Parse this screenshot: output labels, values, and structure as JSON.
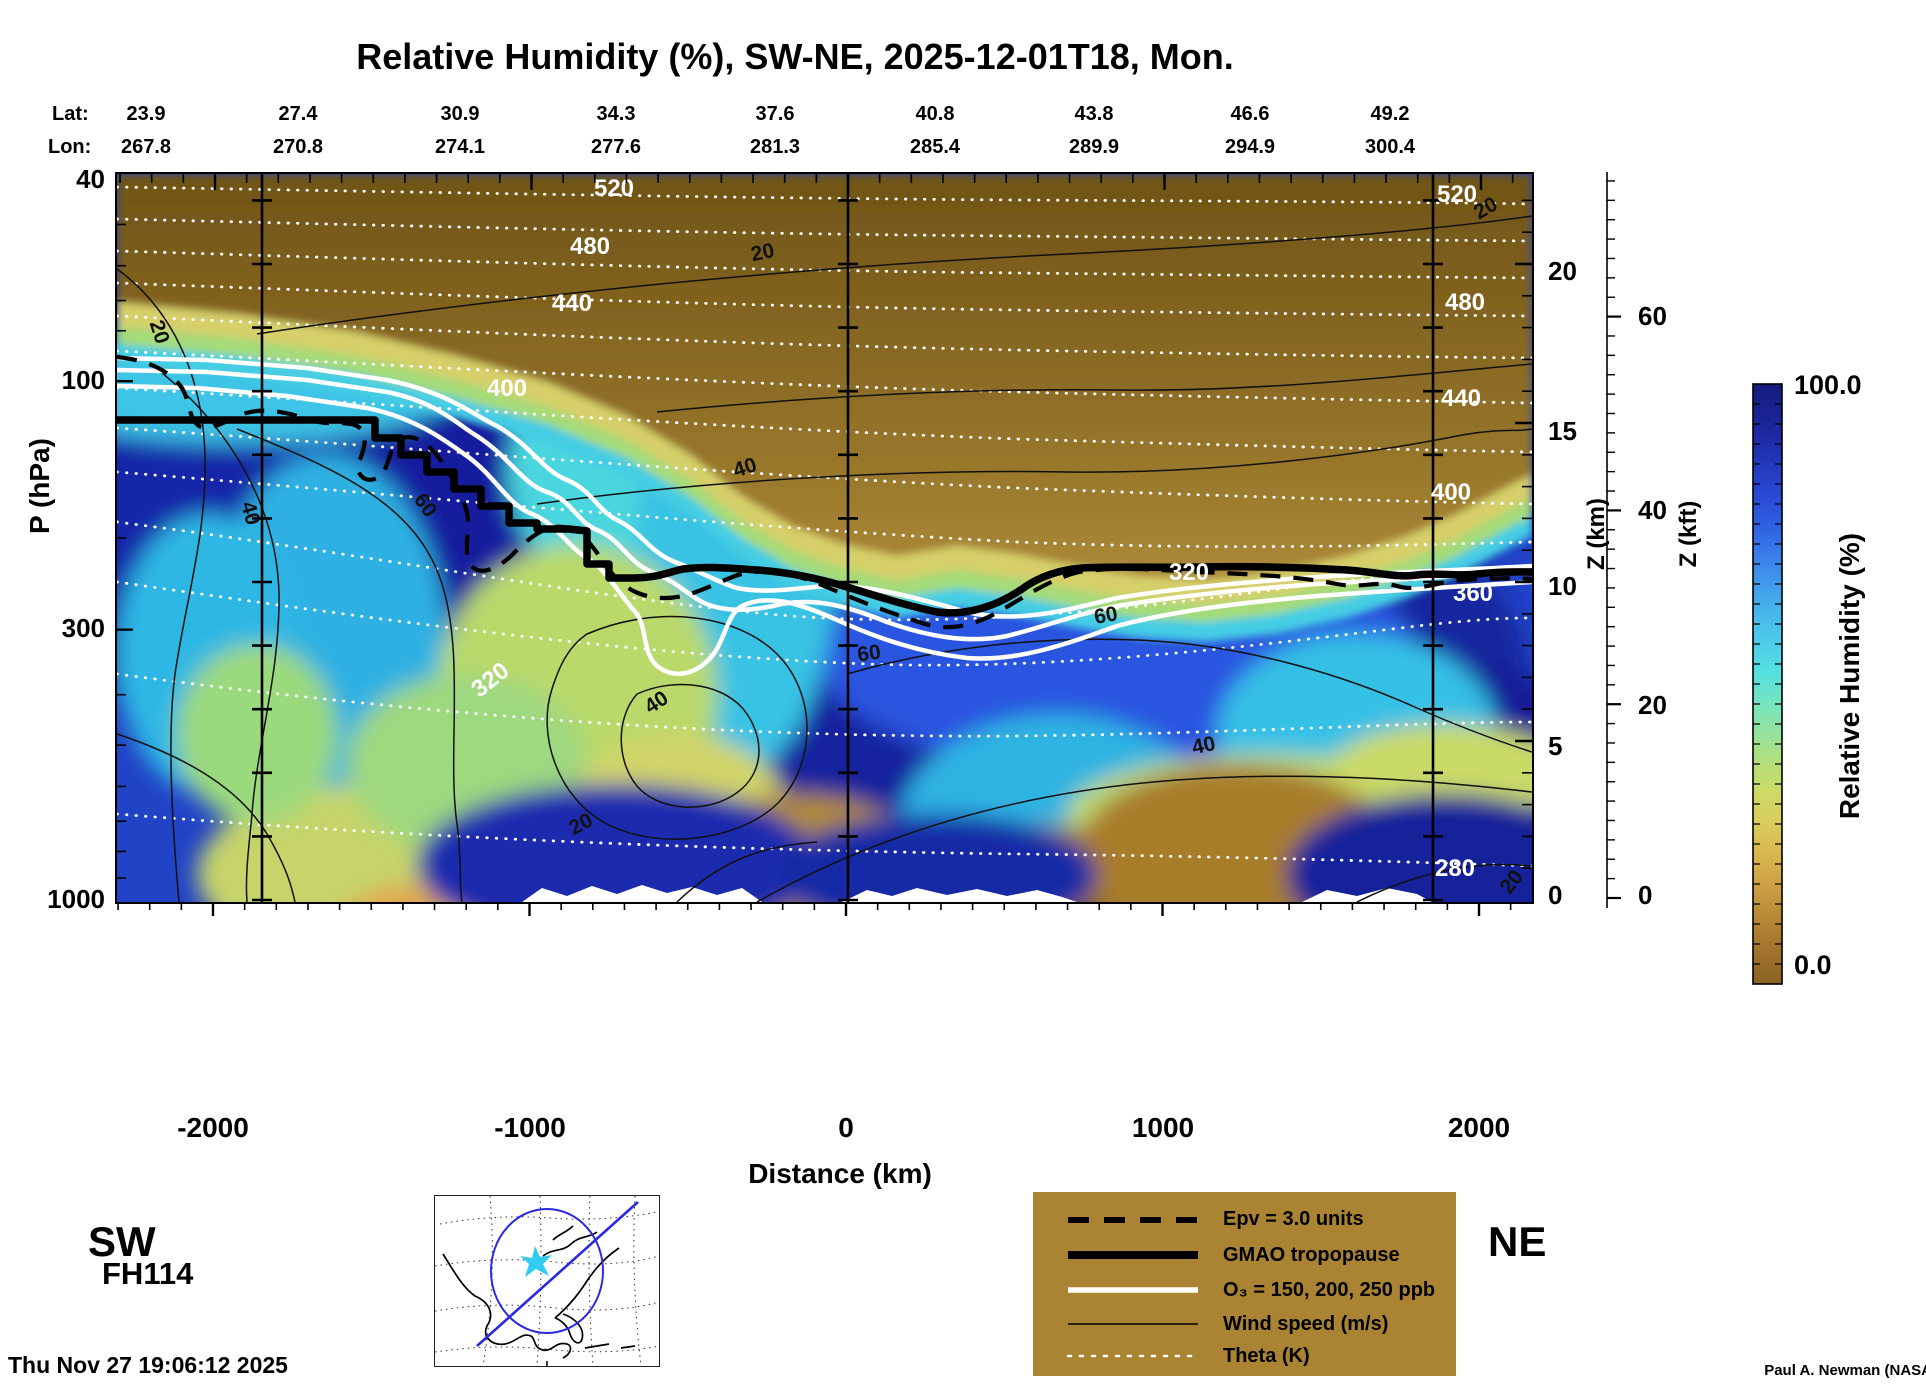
{
  "title": "Relative Humidity (%), SW-NE, 2025-12-01T18, Mon.",
  "top_axis": {
    "lat_label": "Lat:",
    "lon_label": "Lon:",
    "lats": [
      "23.9",
      "27.4",
      "30.9",
      "34.3",
      "37.6",
      "40.8",
      "43.8",
      "46.6",
      "49.2"
    ],
    "lons": [
      "267.8",
      "270.8",
      "274.1",
      "277.6",
      "281.3",
      "285.4",
      "289.9",
      "294.9",
      "300.4"
    ]
  },
  "y_axis": {
    "label": "P (hPa)",
    "ticks": [
      "40",
      "100",
      "300",
      "1000"
    ]
  },
  "x_axis": {
    "label": "Distance (km)",
    "ticks": [
      "-2000",
      "-1000",
      "0",
      "1000",
      "2000"
    ],
    "start_label": "SW",
    "end_label": "NE"
  },
  "z_km_axis": {
    "label": "Z (km)",
    "ticks": [
      "20",
      "15",
      "10",
      "5",
      "0"
    ]
  },
  "z_kft_axis": {
    "label": "Z (kft)",
    "ticks": [
      "60",
      "40",
      "20",
      "0"
    ]
  },
  "colorbar": {
    "label": "Relative Humidity (%)",
    "max_label": "100.0",
    "min_label": "0.0",
    "top_color": "#151b7e",
    "bottom_color": "#8a6222"
  },
  "legend": {
    "items": [
      {
        "label": "Epv = 3.0 units",
        "style": "black-dashed-thick"
      },
      {
        "label": "GMAO tropopause",
        "style": "black-solid-thick"
      },
      {
        "label": "O₃ = 150, 200, 250 ppb",
        "style": "white-solid-thick"
      },
      {
        "label": "Wind speed (m/s)",
        "style": "black-solid-thin"
      },
      {
        "label": "Theta (K)",
        "style": "white-dotted"
      }
    ],
    "bg_color": "#aa8432"
  },
  "annotations": {
    "theta_labels": [
      "520",
      "480",
      "440",
      "400",
      "320",
      "520",
      "480",
      "440",
      "400",
      "360",
      "320",
      "280"
    ],
    "wind_labels": [
      "20",
      "40",
      "60",
      "20",
      "40",
      "40",
      "20",
      "60",
      "60",
      "40",
      "20",
      "20"
    ]
  },
  "footer": {
    "run_id": "FH114",
    "timestamp": "Thu Nov 27 19:06:12 2025",
    "credit": "Paul A. Newman (NASA"
  },
  "chart_data": {
    "type": "heatmap",
    "subtype": "vertical-cross-section-filled-contours",
    "title": "Relative Humidity (%), SW-NE, 2025-12-01T18, Mon.",
    "xlabel": "Distance (km)",
    "ylabel": "P (hPa)",
    "x_range_km": [
      -2310,
      2160
    ],
    "x_ticks_km": [
      -2000,
      -1000,
      0,
      1000,
      2000
    ],
    "pressure_ticks_hPa": [
      40,
      100,
      300,
      1000
    ],
    "pressure_scale": "log",
    "altitude_km_ticks": [
      20,
      15,
      10,
      5,
      0
    ],
    "altitude_kft_ticks": [
      60,
      40,
      20,
      0
    ],
    "section_endpoints": {
      "start": "SW",
      "end": "NE"
    },
    "colorbar": {
      "label": "Relative Humidity (%)",
      "min": 0.0,
      "max": 100.0
    },
    "waypoints": {
      "lat": [
        23.9,
        27.4,
        30.9,
        34.3,
        37.6,
        40.8,
        43.8,
        46.6,
        49.2
      ],
      "lon": [
        267.8,
        270.8,
        274.1,
        277.6,
        281.3,
        285.4,
        289.9,
        294.9,
        300.4
      ]
    },
    "rh_percent_grid_estimate": {
      "note": "RH (%) read from fill colors at waypoint columns; rows are pressure levels",
      "pressure_hPa": [
        100,
        150,
        200,
        300,
        500,
        700,
        900
      ],
      "distance_km": [
        -2200,
        -1700,
        -1200,
        -700,
        -250,
        250,
        750,
        1300,
        1800
      ],
      "values_by_pressure_row": [
        [
          60,
          55,
          40,
          15,
          8,
          5,
          5,
          5,
          5
        ],
        [
          85,
          85,
          70,
          45,
          25,
          12,
          10,
          8,
          10
        ],
        [
          95,
          95,
          95,
          80,
          70,
          40,
          30,
          45,
          60
        ],
        [
          85,
          75,
          90,
          60,
          85,
          90,
          85,
          90,
          95
        ],
        [
          45,
          35,
          60,
          45,
          55,
          45,
          35,
          55,
          70
        ],
        [
          60,
          55,
          45,
          70,
          35,
          25,
          15,
          20,
          50
        ],
        [
          80,
          85,
          90,
          95,
          70,
          85,
          75,
          90,
          95
        ]
      ]
    },
    "overlays": [
      {
        "name": "Epv",
        "value": "3.0 units",
        "style": "thick dashed black"
      },
      {
        "name": "GMAO tropopause",
        "style": "thick solid black",
        "approx_points": {
          "distance_km": [
            -2300,
            -1600,
            -1200,
            -800,
            -400,
            0,
            200,
            400,
            800,
            1200,
            1600,
            2100
          ],
          "pressure_hPa": [
            120,
            121,
            150,
            185,
            205,
            230,
            262,
            270,
            228,
            226,
            228,
            232
          ]
        }
      },
      {
        "name": "O3",
        "levels_ppb": [
          150,
          200,
          250
        ],
        "style": "thick white"
      },
      {
        "name": "Wind speed (m/s)",
        "labeled_contours": [
          20,
          40,
          60
        ],
        "style": "thin black"
      },
      {
        "name": "Theta (K)",
        "labeled_contours": [
          280,
          320,
          360,
          400,
          440,
          480,
          520
        ],
        "style": "white dotted"
      }
    ]
  }
}
